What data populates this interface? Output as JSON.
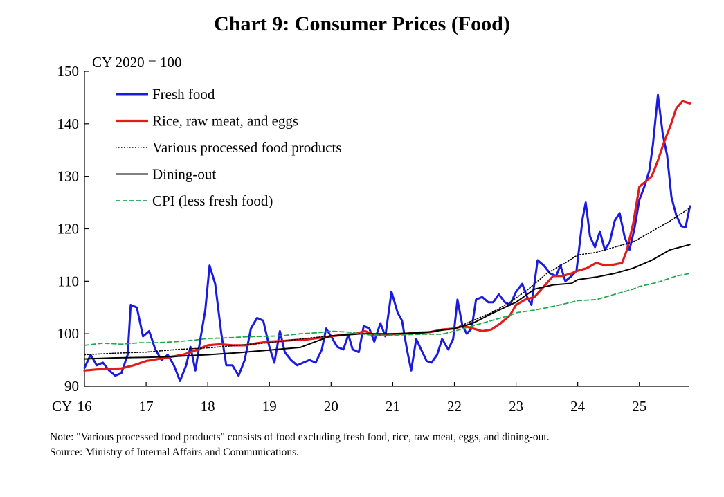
{
  "chart_data": {
    "type": "line",
    "title": "Chart 9: Consumer Prices (Food)",
    "ylabel": "CY 2020 = 100",
    "xlabel": "",
    "x_prefix": "CY",
    "ylim": [
      90,
      150
    ],
    "yticks": [
      90,
      100,
      110,
      120,
      130,
      140,
      150
    ],
    "xlim": [
      2016,
      2025.8
    ],
    "x_ticks": [
      {
        "value": 2016,
        "label": "16"
      },
      {
        "value": 2017,
        "label": "17"
      },
      {
        "value": 2018,
        "label": "18"
      },
      {
        "value": 2019,
        "label": "19"
      },
      {
        "value": 2020,
        "label": "20"
      },
      {
        "value": 2021,
        "label": "21"
      },
      {
        "value": 2022,
        "label": "22"
      },
      {
        "value": 2023,
        "label": "23"
      },
      {
        "value": 2024,
        "label": "24"
      },
      {
        "value": 2025,
        "label": "25"
      }
    ],
    "legend_position": "top-left",
    "series": [
      {
        "name": "Fresh food",
        "color": "#1b1be0",
        "style": "solid",
        "points": [
          [
            2016.0,
            93.5
          ],
          [
            2016.1,
            96
          ],
          [
            2016.2,
            94
          ],
          [
            2016.3,
            94.5
          ],
          [
            2016.4,
            93
          ],
          [
            2016.5,
            92
          ],
          [
            2016.6,
            92.5
          ],
          [
            2016.7,
            96
          ],
          [
            2016.75,
            105.5
          ],
          [
            2016.85,
            105
          ],
          [
            2016.95,
            99.5
          ],
          [
            2017.05,
            100.5
          ],
          [
            2017.15,
            97
          ],
          [
            2017.25,
            95
          ],
          [
            2017.35,
            96
          ],
          [
            2017.45,
            94
          ],
          [
            2017.55,
            91
          ],
          [
            2017.65,
            94
          ],
          [
            2017.72,
            97.5
          ],
          [
            2017.8,
            93
          ],
          [
            2017.88,
            99
          ],
          [
            2017.96,
            104.5
          ],
          [
            2018.03,
            113
          ],
          [
            2018.12,
            109.5
          ],
          [
            2018.22,
            100
          ],
          [
            2018.3,
            94
          ],
          [
            2018.4,
            94
          ],
          [
            2018.5,
            92
          ],
          [
            2018.6,
            95
          ],
          [
            2018.7,
            101
          ],
          [
            2018.8,
            103
          ],
          [
            2018.9,
            102.5
          ],
          [
            2019.0,
            97.5
          ],
          [
            2019.08,
            94.5
          ],
          [
            2019.17,
            100.5
          ],
          [
            2019.25,
            96.5
          ],
          [
            2019.35,
            95
          ],
          [
            2019.45,
            94
          ],
          [
            2019.55,
            94.5
          ],
          [
            2019.65,
            95
          ],
          [
            2019.75,
            94.5
          ],
          [
            2019.85,
            97
          ],
          [
            2019.92,
            101
          ],
          [
            2020.0,
            99.5
          ],
          [
            2020.1,
            97.5
          ],
          [
            2020.2,
            97
          ],
          [
            2020.28,
            99.8
          ],
          [
            2020.35,
            97
          ],
          [
            2020.45,
            96.5
          ],
          [
            2020.53,
            101.5
          ],
          [
            2020.62,
            101
          ],
          [
            2020.7,
            98.5
          ],
          [
            2020.8,
            102
          ],
          [
            2020.88,
            99.5
          ],
          [
            2020.98,
            108
          ],
          [
            2021.08,
            104
          ],
          [
            2021.15,
            102.5
          ],
          [
            2021.23,
            97
          ],
          [
            2021.3,
            93
          ],
          [
            2021.38,
            99
          ],
          [
            2021.46,
            97
          ],
          [
            2021.55,
            94.8
          ],
          [
            2021.63,
            94.5
          ],
          [
            2021.72,
            96
          ],
          [
            2021.8,
            99
          ],
          [
            2021.9,
            97
          ],
          [
            2021.98,
            99
          ],
          [
            2022.05,
            106.5
          ],
          [
            2022.13,
            101.5
          ],
          [
            2022.2,
            100
          ],
          [
            2022.28,
            101
          ],
          [
            2022.35,
            106.5
          ],
          [
            2022.45,
            107
          ],
          [
            2022.55,
            106
          ],
          [
            2022.63,
            106
          ],
          [
            2022.72,
            107.5
          ],
          [
            2022.82,
            106
          ],
          [
            2022.9,
            105.5
          ],
          [
            2023.0,
            108
          ],
          [
            2023.1,
            109.5
          ],
          [
            2023.18,
            107
          ],
          [
            2023.25,
            105.5
          ],
          [
            2023.35,
            114
          ],
          [
            2023.45,
            113
          ],
          [
            2023.55,
            111.5
          ],
          [
            2023.65,
            111
          ],
          [
            2023.72,
            113
          ],
          [
            2023.8,
            110
          ],
          [
            2023.9,
            111
          ],
          [
            2023.98,
            112
          ],
          [
            2024.08,
            122
          ],
          [
            2024.13,
            125
          ],
          [
            2024.2,
            118.5
          ],
          [
            2024.28,
            116.5
          ],
          [
            2024.36,
            119.5
          ],
          [
            2024.44,
            116
          ],
          [
            2024.52,
            117.5
          ],
          [
            2024.6,
            121.5
          ],
          [
            2024.68,
            123
          ],
          [
            2024.76,
            118.5
          ],
          [
            2024.84,
            116
          ],
          [
            2024.92,
            120
          ],
          [
            2025.0,
            125.5
          ],
          [
            2025.08,
            128
          ],
          [
            2025.16,
            131
          ],
          [
            2025.22,
            136
          ],
          [
            2025.3,
            145.5
          ],
          [
            2025.38,
            138
          ],
          [
            2025.45,
            134
          ],
          [
            2025.52,
            126
          ],
          [
            2025.6,
            122.5
          ],
          [
            2025.68,
            120.5
          ],
          [
            2025.75,
            120.3
          ],
          [
            2025.82,
            124.3
          ]
        ]
      },
      {
        "name": "Rice, raw meat, and eggs",
        "color": "#e31b1b",
        "style": "solid",
        "points": [
          [
            2016.0,
            93
          ],
          [
            2016.2,
            93.2
          ],
          [
            2016.4,
            93.3
          ],
          [
            2016.6,
            93.4
          ],
          [
            2016.8,
            94
          ],
          [
            2017.0,
            94.8
          ],
          [
            2017.2,
            95.2
          ],
          [
            2017.4,
            95.6
          ],
          [
            2017.6,
            96
          ],
          [
            2017.8,
            96.8
          ],
          [
            2018.0,
            97.8
          ],
          [
            2018.2,
            98
          ],
          [
            2018.4,
            97.8
          ],
          [
            2018.6,
            97.8
          ],
          [
            2018.8,
            98.2
          ],
          [
            2019.0,
            98.5
          ],
          [
            2019.2,
            98.6
          ],
          [
            2019.4,
            98.8
          ],
          [
            2019.6,
            98.9
          ],
          [
            2019.8,
            99.2
          ],
          [
            2020.0,
            99.5
          ],
          [
            2020.2,
            99.8
          ],
          [
            2020.4,
            100
          ],
          [
            2020.55,
            100.5
          ],
          [
            2020.7,
            99.8
          ],
          [
            2020.85,
            99.8
          ],
          [
            2021.0,
            99.9
          ],
          [
            2021.2,
            100
          ],
          [
            2021.4,
            100.2
          ],
          [
            2021.6,
            100.3
          ],
          [
            2021.8,
            100.8
          ],
          [
            2022.0,
            101
          ],
          [
            2022.15,
            101.5
          ],
          [
            2022.3,
            101
          ],
          [
            2022.45,
            100.5
          ],
          [
            2022.6,
            100.8
          ],
          [
            2022.75,
            102
          ],
          [
            2022.9,
            103.5
          ],
          [
            2023.0,
            105.5
          ],
          [
            2023.15,
            106.5
          ],
          [
            2023.3,
            107
          ],
          [
            2023.45,
            109
          ],
          [
            2023.6,
            111
          ],
          [
            2023.75,
            111
          ],
          [
            2023.9,
            111.5
          ],
          [
            2024.0,
            112
          ],
          [
            2024.15,
            112.5
          ],
          [
            2024.3,
            113.5
          ],
          [
            2024.45,
            113
          ],
          [
            2024.6,
            113.2
          ],
          [
            2024.72,
            113.5
          ],
          [
            2024.8,
            116
          ],
          [
            2024.9,
            121
          ],
          [
            2025.0,
            128
          ],
          [
            2025.1,
            129
          ],
          [
            2025.2,
            130
          ],
          [
            2025.3,
            133
          ],
          [
            2025.4,
            136.5
          ],
          [
            2025.5,
            139.5
          ],
          [
            2025.6,
            143
          ],
          [
            2025.7,
            144.3
          ],
          [
            2025.82,
            143.9
          ]
        ]
      },
      {
        "name": "Various processed food products",
        "color": "#000000",
        "style": "dotted",
        "points": [
          [
            2016.0,
            96
          ],
          [
            2016.5,
            96.3
          ],
          [
            2017.0,
            96.5
          ],
          [
            2017.5,
            97
          ],
          [
            2018.0,
            97.3
          ],
          [
            2018.5,
            97.8
          ],
          [
            2019.0,
            98.3
          ],
          [
            2019.5,
            99
          ],
          [
            2020.0,
            99.6
          ],
          [
            2020.5,
            100
          ],
          [
            2021.0,
            100
          ],
          [
            2021.5,
            100.2
          ],
          [
            2022.0,
            101
          ],
          [
            2022.3,
            102.5
          ],
          [
            2022.6,
            104
          ],
          [
            2022.9,
            106
          ],
          [
            2023.2,
            108.5
          ],
          [
            2023.5,
            111.5
          ],
          [
            2023.8,
            113.5
          ],
          [
            2024.0,
            115
          ],
          [
            2024.3,
            115.5
          ],
          [
            2024.6,
            116.5
          ],
          [
            2024.9,
            117.5
          ],
          [
            2025.2,
            119.5
          ],
          [
            2025.5,
            121.5
          ],
          [
            2025.82,
            124
          ]
        ]
      },
      {
        "name": "Dining-out",
        "color": "#000000",
        "style": "solid",
        "points": [
          [
            2016.0,
            95.2
          ],
          [
            2016.5,
            95.4
          ],
          [
            2017.0,
            95.5
          ],
          [
            2017.5,
            95.7
          ],
          [
            2018.0,
            96
          ],
          [
            2018.5,
            96.4
          ],
          [
            2019.0,
            96.9
          ],
          [
            2019.5,
            97.4
          ],
          [
            2020.0,
            99.6
          ],
          [
            2020.5,
            100
          ],
          [
            2021.0,
            100
          ],
          [
            2021.5,
            100.2
          ],
          [
            2022.0,
            101
          ],
          [
            2022.3,
            102
          ],
          [
            2022.6,
            103.8
          ],
          [
            2022.9,
            105.5
          ],
          [
            2023.0,
            106
          ],
          [
            2023.3,
            108.5
          ],
          [
            2023.6,
            109.3
          ],
          [
            2023.9,
            109.6
          ],
          [
            2024.0,
            110.3
          ],
          [
            2024.3,
            110.8
          ],
          [
            2024.6,
            111.5
          ],
          [
            2024.9,
            112.5
          ],
          [
            2025.2,
            114
          ],
          [
            2025.5,
            116
          ],
          [
            2025.82,
            117
          ]
        ]
      },
      {
        "name": "CPI (less fresh food)",
        "color": "#1ea84b",
        "style": "dashed",
        "points": [
          [
            2016.0,
            97.8
          ],
          [
            2016.3,
            98.2
          ],
          [
            2016.6,
            98
          ],
          [
            2016.9,
            98.3
          ],
          [
            2017.2,
            98.3
          ],
          [
            2017.5,
            98.5
          ],
          [
            2017.8,
            98.8
          ],
          [
            2018.0,
            99.1
          ],
          [
            2018.3,
            99.2
          ],
          [
            2018.6,
            99.4
          ],
          [
            2018.9,
            99.5
          ],
          [
            2019.2,
            99.6
          ],
          [
            2019.5,
            100
          ],
          [
            2019.8,
            100.2
          ],
          [
            2020.0,
            100.5
          ],
          [
            2020.3,
            100.3
          ],
          [
            2020.6,
            99.8
          ],
          [
            2020.9,
            99.7
          ],
          [
            2021.2,
            99.8
          ],
          [
            2021.5,
            99.9
          ],
          [
            2021.8,
            99.9
          ],
          [
            2022.0,
            100.5
          ],
          [
            2022.3,
            101.5
          ],
          [
            2022.6,
            102.5
          ],
          [
            2022.9,
            103.5
          ],
          [
            2023.0,
            104
          ],
          [
            2023.3,
            104.5
          ],
          [
            2023.6,
            105.2
          ],
          [
            2023.9,
            106
          ],
          [
            2024.0,
            106.3
          ],
          [
            2024.3,
            106.5
          ],
          [
            2024.6,
            107.5
          ],
          [
            2024.9,
            108.5
          ],
          [
            2025.0,
            109
          ],
          [
            2025.3,
            109.8
          ],
          [
            2025.6,
            111
          ],
          [
            2025.82,
            111.5
          ]
        ]
      }
    ]
  },
  "notes": {
    "note": "Note: \"Various processed food products\" consists of food excluding fresh food, rice, raw meat, eggs, and dining-out.",
    "source": "Source: Ministry of Internal Affairs and Communications."
  }
}
